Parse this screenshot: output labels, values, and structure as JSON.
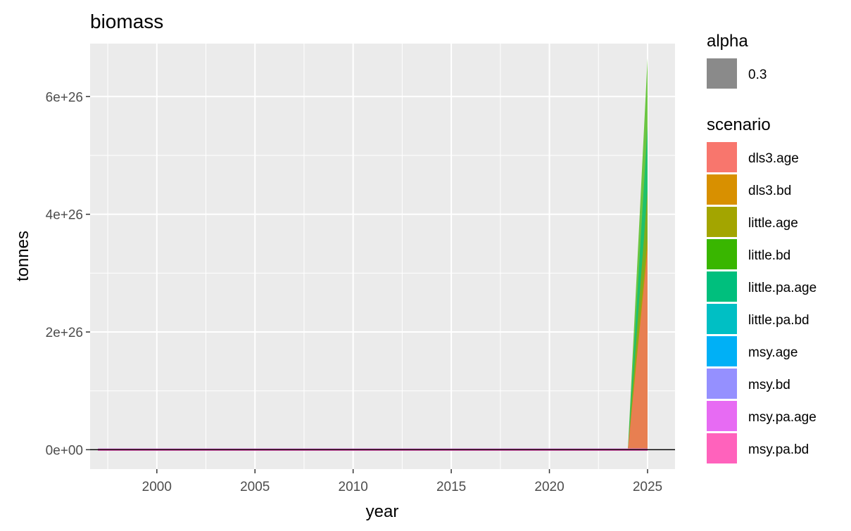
{
  "chart_data": {
    "type": "area",
    "title": "biomass",
    "xlabel": "year",
    "ylabel": "tonnes",
    "xlim": [
      1996.6,
      2026.4
    ],
    "ylim": [
      -3.3e+25,
      6.9e+26
    ],
    "x_ticks": [
      2000,
      2005,
      2010,
      2015,
      2020,
      2025
    ],
    "x_tick_labels": [
      "2000",
      "2005",
      "2010",
      "2015",
      "2020",
      "2025"
    ],
    "y_ticks": [
      0,
      2e+26,
      4e+26,
      6e+26
    ],
    "y_tick_labels": [
      "0e+00",
      "2e+26",
      "4e+26",
      "6e+26"
    ],
    "grid": true,
    "hline": 0,
    "legend_position": "right",
    "legends": [
      {
        "title": "alpha",
        "items": [
          {
            "label": "0.3",
            "color": "#8a8a8a"
          }
        ]
      },
      {
        "title": "scenario",
        "items": [
          {
            "label": "dls3.age",
            "color": "#F8766D"
          },
          {
            "label": "dls3.bd",
            "color": "#D89000"
          },
          {
            "label": "little.age",
            "color": "#A3A500"
          },
          {
            "label": "little.bd",
            "color": "#39B600"
          },
          {
            "label": "little.pa.age",
            "color": "#00BF7D"
          },
          {
            "label": "little.pa.bd",
            "color": "#00BFC4"
          },
          {
            "label": "msy.age",
            "color": "#00B0F6"
          },
          {
            "label": "msy.bd",
            "color": "#9590FF"
          },
          {
            "label": "msy.pa.age",
            "color": "#E76BF3"
          },
          {
            "label": "msy.pa.bd",
            "color": "#FF62BC"
          }
        ]
      }
    ],
    "series": [
      {
        "name": "dls3.age",
        "color": "#F8766D",
        "x": [
          1997,
          2024,
          2025
        ],
        "y": [
          0,
          0,
          3.4e+26
        ]
      },
      {
        "name": "dls3.bd",
        "color": "#D89000",
        "x": [
          1997,
          2024,
          2025
        ],
        "y": [
          0,
          0,
          3.6e+26
        ]
      },
      {
        "name": "little.age",
        "color": "#A3A500",
        "x": [
          1997,
          2024,
          2025
        ],
        "y": [
          0,
          0,
          4.4e+26
        ]
      },
      {
        "name": "little.bd",
        "color": "#39B600",
        "x": [
          1997,
          2024,
          2025
        ],
        "y": [
          0,
          0,
          6.65e+26
        ]
      },
      {
        "name": "little.pa.age",
        "color": "#00BF7D",
        "x": [
          1997,
          2024,
          2025
        ],
        "y": [
          0,
          0,
          5.5e+26
        ]
      },
      {
        "name": "little.pa.bd",
        "color": "#00BFC4",
        "x": [
          1997,
          2024,
          2025
        ],
        "y": [
          0,
          0,
          0
        ]
      },
      {
        "name": "msy.age",
        "color": "#00B0F6",
        "x": [
          1997,
          2024,
          2025
        ],
        "y": [
          0,
          0,
          0
        ]
      },
      {
        "name": "msy.bd",
        "color": "#9590FF",
        "x": [
          1997,
          2024,
          2025
        ],
        "y": [
          0,
          0,
          0
        ]
      },
      {
        "name": "msy.pa.age",
        "color": "#E76BF3",
        "x": [
          1997,
          2024,
          2025
        ],
        "y": [
          0,
          0,
          0
        ]
      },
      {
        "name": "msy.pa.bd",
        "color": "#FF62BC",
        "x": [
          1997,
          2024,
          2025
        ],
        "y": [
          0,
          0,
          0
        ]
      }
    ]
  }
}
